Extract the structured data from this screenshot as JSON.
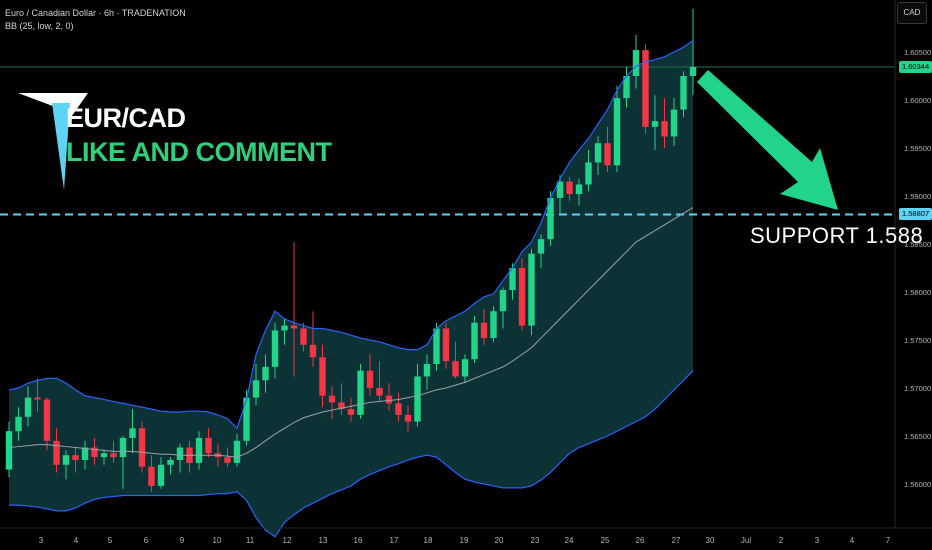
{
  "header": {
    "symbol_line": "Euro / Canadian Dollar · 6h · TRADENATION",
    "indicator_line": "BB (25, low, 2, 0)",
    "currency": "CAD"
  },
  "annotations": {
    "pair": "EUR/CAD",
    "cta": "LIKE AND COMMENT",
    "support": "SUPPORT  1.588"
  },
  "price_tags": {
    "last": "1.60344",
    "support": "1.58807"
  },
  "colors": {
    "background": "#000000",
    "up": "#22d38a",
    "down": "#f23645",
    "band_line": "#2962ff",
    "band_fill": "#0e3b3e",
    "mid_line": "#9aa3a8",
    "support_line": "#5fd3f3",
    "arrow": "#22d38a",
    "logo": "#5fd3f3"
  },
  "chart_data": {
    "type": "candlestick",
    "title": "Euro / Canadian Dollar · 6h · TRADENATION",
    "ylim": [
      1.5565,
      1.6095
    ],
    "y_ticks": [
      1.56,
      1.565,
      1.57,
      1.575,
      1.58,
      1.585,
      1.59,
      1.595,
      1.6,
      1.605
    ],
    "y_tick_labels": [
      "1.56000",
      "1.56500",
      "1.57000",
      "1.57500",
      "1.58000",
      "1.58500",
      "1.59000",
      "1.59500",
      "1.60000",
      "1.60500"
    ],
    "x_tick_labels": [
      "3",
      "4",
      "5",
      "6",
      "9",
      "10",
      "11",
      "12",
      "13",
      "16",
      "17",
      "18",
      "19",
      "20",
      "23",
      "24",
      "25",
      "26",
      "27",
      "30",
      "Jul",
      "2",
      "3",
      "4",
      "7"
    ],
    "support_level": 1.58807,
    "last_price": 1.60344,
    "candles": [
      [
        1.5615,
        1.5665,
        1.5607,
        1.5655
      ],
      [
        1.5655,
        1.568,
        1.5645,
        1.567
      ],
      [
        1.567,
        1.5702,
        1.566,
        1.569
      ],
      [
        1.569,
        1.571,
        1.5675,
        1.5688
      ],
      [
        1.5688,
        1.569,
        1.5635,
        1.5645
      ],
      [
        1.5645,
        1.5658,
        1.5612,
        1.562
      ],
      [
        1.562,
        1.5635,
        1.5605,
        1.563
      ],
      [
        1.563,
        1.5638,
        1.5612,
        1.5625
      ],
      [
        1.5625,
        1.5645,
        1.5615,
        1.5638
      ],
      [
        1.5638,
        1.5648,
        1.562,
        1.5628
      ],
      [
        1.5628,
        1.5636,
        1.562,
        1.5632
      ],
      [
        1.5632,
        1.5645,
        1.5622,
        1.5628
      ],
      [
        1.5628,
        1.565,
        1.5595,
        1.5648
      ],
      [
        1.5648,
        1.5678,
        1.5632,
        1.5658
      ],
      [
        1.5658,
        1.5665,
        1.5612,
        1.5618
      ],
      [
        1.5618,
        1.563,
        1.5592,
        1.5598
      ],
      [
        1.5598,
        1.5628,
        1.5595,
        1.562
      ],
      [
        1.562,
        1.5628,
        1.561,
        1.5625
      ],
      [
        1.5625,
        1.5642,
        1.5612,
        1.5638
      ],
      [
        1.5638,
        1.5645,
        1.5612,
        1.5622
      ],
      [
        1.5622,
        1.5655,
        1.5615,
        1.5648
      ],
      [
        1.5648,
        1.5658,
        1.5628,
        1.5632
      ],
      [
        1.5632,
        1.5642,
        1.5618,
        1.5628
      ],
      [
        1.5628,
        1.5638,
        1.5618,
        1.5622
      ],
      [
        1.5622,
        1.5652,
        1.5618,
        1.5645
      ],
      [
        1.5645,
        1.5698,
        1.564,
        1.569
      ],
      [
        1.569,
        1.5725,
        1.5682,
        1.5708
      ],
      [
        1.5708,
        1.5735,
        1.5695,
        1.5722
      ],
      [
        1.5722,
        1.5768,
        1.571,
        1.576
      ],
      [
        1.576,
        1.5772,
        1.5745,
        1.5765
      ],
      [
        1.5765,
        1.5852,
        1.5712,
        1.5762
      ],
      [
        1.5762,
        1.5768,
        1.5738,
        1.5745
      ],
      [
        1.5745,
        1.578,
        1.5722,
        1.5732
      ],
      [
        1.5732,
        1.5745,
        1.568,
        1.5692
      ],
      [
        1.5692,
        1.5702,
        1.5668,
        1.5685
      ],
      [
        1.5685,
        1.5705,
        1.5672,
        1.5678
      ],
      [
        1.5678,
        1.569,
        1.5665,
        1.5672
      ],
      [
        1.5672,
        1.5725,
        1.5668,
        1.5718
      ],
      [
        1.5718,
        1.5735,
        1.5692,
        1.57
      ],
      [
        1.57,
        1.5728,
        1.5685,
        1.5692
      ],
      [
        1.5692,
        1.5705,
        1.5676,
        1.5684
      ],
      [
        1.5684,
        1.5695,
        1.5665,
        1.5672
      ],
      [
        1.5672,
        1.5682,
        1.5655,
        1.5665
      ],
      [
        1.5665,
        1.5725,
        1.566,
        1.5712
      ],
      [
        1.5712,
        1.5735,
        1.5698,
        1.5725
      ],
      [
        1.5725,
        1.5768,
        1.5718,
        1.5762
      ],
      [
        1.5762,
        1.5768,
        1.572,
        1.5728
      ],
      [
        1.5728,
        1.5748,
        1.571,
        1.5712
      ],
      [
        1.5712,
        1.5735,
        1.5705,
        1.573
      ],
      [
        1.573,
        1.5775,
        1.5726,
        1.5768
      ],
      [
        1.5768,
        1.5782,
        1.5745,
        1.5752
      ],
      [
        1.5752,
        1.5785,
        1.5748,
        1.578
      ],
      [
        1.578,
        1.5805,
        1.5762,
        1.5802
      ],
      [
        1.5802,
        1.583,
        1.5792,
        1.5825
      ],
      [
        1.5825,
        1.5835,
        1.576,
        1.5765
      ],
      [
        1.5765,
        1.5845,
        1.5755,
        1.584
      ],
      [
        1.584,
        1.586,
        1.5825,
        1.5855
      ],
      [
        1.5855,
        1.5905,
        1.5848,
        1.5898
      ],
      [
        1.5898,
        1.5922,
        1.5882,
        1.5915
      ],
      [
        1.5915,
        1.592,
        1.5895,
        1.5902
      ],
      [
        1.5902,
        1.5918,
        1.589,
        1.5912
      ],
      [
        1.5912,
        1.5948,
        1.5905,
        1.5935
      ],
      [
        1.5935,
        1.5962,
        1.5922,
        1.5955
      ],
      [
        1.5955,
        1.5972,
        1.5925,
        1.5932
      ],
      [
        1.5932,
        1.6015,
        1.5925,
        1.6002
      ],
      [
        1.6002,
        1.6035,
        1.5992,
        1.6025
      ],
      [
        1.6025,
        1.6068,
        1.6012,
        1.6052
      ],
      [
        1.6052,
        1.6058,
        1.5965,
        1.5972
      ],
      [
        1.5972,
        1.6005,
        1.5948,
        1.5978
      ],
      [
        1.5978,
        1.6002,
        1.595,
        1.5962
      ],
      [
        1.5962,
        1.6002,
        1.5952,
        1.599
      ],
      [
        1.599,
        1.603,
        1.5982,
        1.6025
      ],
      [
        1.6025,
        1.6095,
        1.6005,
        1.60344
      ]
    ],
    "bollinger": {
      "upper": [
        1.5698,
        1.57,
        1.5705,
        1.5708,
        1.571,
        1.571,
        1.5705,
        1.5698,
        1.5692,
        1.569,
        1.5688,
        1.5686,
        1.5684,
        1.5682,
        1.568,
        1.5678,
        1.5676,
        1.5675,
        1.5675,
        1.5676,
        1.5676,
        1.5675,
        1.5672,
        1.5668,
        1.5658,
        1.5688,
        1.5735,
        1.576,
        1.578,
        1.5772,
        1.5768,
        1.5765,
        1.5762,
        1.5762,
        1.576,
        1.5758,
        1.5755,
        1.5752,
        1.575,
        1.5748,
        1.5745,
        1.5742,
        1.574,
        1.574,
        1.5745,
        1.5762,
        1.577,
        1.5775,
        1.578,
        1.5788,
        1.5795,
        1.5798,
        1.5812,
        1.5825,
        1.5842,
        1.5852,
        1.5872,
        1.5898,
        1.5918,
        1.5935,
        1.5948,
        1.596,
        1.5975,
        1.599,
        1.601,
        1.6025,
        1.6035,
        1.604,
        1.6042,
        1.6045,
        1.605,
        1.6055,
        1.6062
      ],
      "middle": [
        1.5638,
        1.5639,
        1.564,
        1.5641,
        1.5641,
        1.564,
        1.5639,
        1.5638,
        1.5637,
        1.5636,
        1.5635,
        1.5634,
        1.5634,
        1.5634,
        1.5633,
        1.5632,
        1.5631,
        1.5631,
        1.563,
        1.563,
        1.563,
        1.563,
        1.563,
        1.5629,
        1.5628,
        1.5632,
        1.5638,
        1.5645,
        1.5652,
        1.5658,
        1.5664,
        1.5669,
        1.5672,
        1.5675,
        1.5677,
        1.5679,
        1.5681,
        1.5683,
        1.5685,
        1.5686,
        1.5687,
        1.5688,
        1.569,
        1.5692,
        1.5695,
        1.5698,
        1.57,
        1.5703,
        1.5706,
        1.571,
        1.5714,
        1.5718,
        1.5722,
        1.5728,
        1.5735,
        1.5742,
        1.5752,
        1.5762,
        1.5772,
        1.5782,
        1.5792,
        1.5802,
        1.5812,
        1.5822,
        1.5832,
        1.5842,
        1.5852,
        1.5858,
        1.5864,
        1.587,
        1.5876,
        1.5882,
        1.5888
      ],
      "lower": [
        1.5578,
        1.5578,
        1.5577,
        1.5576,
        1.5574,
        1.5572,
        1.5572,
        1.5575,
        1.558,
        1.5584,
        1.5586,
        1.5587,
        1.5588,
        1.5588,
        1.5588,
        1.5588,
        1.5588,
        1.5588,
        1.5588,
        1.5588,
        1.5588,
        1.5589,
        1.559,
        1.559,
        1.5592,
        1.5583,
        1.5565,
        1.5552,
        1.5545,
        1.556,
        1.5568,
        1.5575,
        1.558,
        1.5585,
        1.559,
        1.5594,
        1.5598,
        1.5605,
        1.561,
        1.5614,
        1.5618,
        1.5621,
        1.5625,
        1.5628,
        1.563,
        1.5628,
        1.562,
        1.5612,
        1.5605,
        1.5602,
        1.56,
        1.5598,
        1.5596,
        1.5596,
        1.5596,
        1.5598,
        1.5604,
        1.5612,
        1.5622,
        1.5632,
        1.5638,
        1.5642,
        1.5646,
        1.565,
        1.5655,
        1.566,
        1.5665,
        1.567,
        1.5678,
        1.5688,
        1.5698,
        1.5708,
        1.5718
      ]
    }
  }
}
